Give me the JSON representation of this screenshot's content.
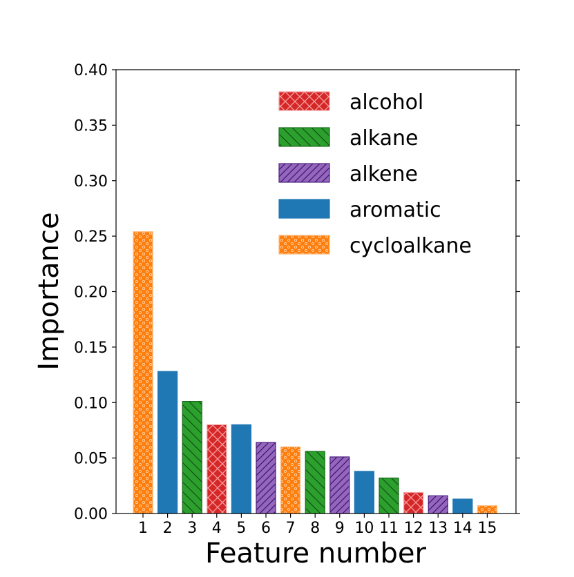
{
  "chart_data": {
    "type": "bar",
    "xlabel": "Feature number",
    "ylabel": "Importance",
    "ylim": [
      0,
      0.4
    ],
    "yticks": [
      "0.00",
      "0.05",
      "0.10",
      "0.15",
      "0.20",
      "0.25",
      "0.30",
      "0.35",
      "0.40"
    ],
    "categories": [
      "1",
      "2",
      "3",
      "4",
      "5",
      "6",
      "7",
      "8",
      "9",
      "10",
      "11",
      "12",
      "13",
      "14",
      "15"
    ],
    "values": [
      0.254,
      0.128,
      0.101,
      0.08,
      0.08,
      0.064,
      0.06,
      0.056,
      0.051,
      0.038,
      0.032,
      0.019,
      0.016,
      0.013,
      0.007
    ],
    "groups": [
      "cycloalkane",
      "aromatic",
      "alkane",
      "alcohol",
      "aromatic",
      "alkene",
      "cycloalkane",
      "alkane",
      "alkene",
      "aromatic",
      "alkane",
      "alcohol",
      "alkene",
      "aromatic",
      "cycloalkane"
    ],
    "legend": [
      {
        "name": "alcohol",
        "color": "#d62728",
        "edge": "#f4a0a0",
        "pattern": "crosshatch"
      },
      {
        "name": "alkane",
        "color": "#2ca02c",
        "edge": "#1a6b1a",
        "pattern": "backslash"
      },
      {
        "name": "alkene",
        "color": "#9467bd",
        "edge": "#4b1f80",
        "pattern": "slash"
      },
      {
        "name": "aromatic",
        "color": "#1f77b4",
        "edge": "#1f77b4",
        "pattern": "none"
      },
      {
        "name": "cycloalkane",
        "color": "#ff7f0e",
        "edge": "#ffb878",
        "pattern": "circles"
      }
    ],
    "legend_position": "top-right",
    "grid": false
  }
}
